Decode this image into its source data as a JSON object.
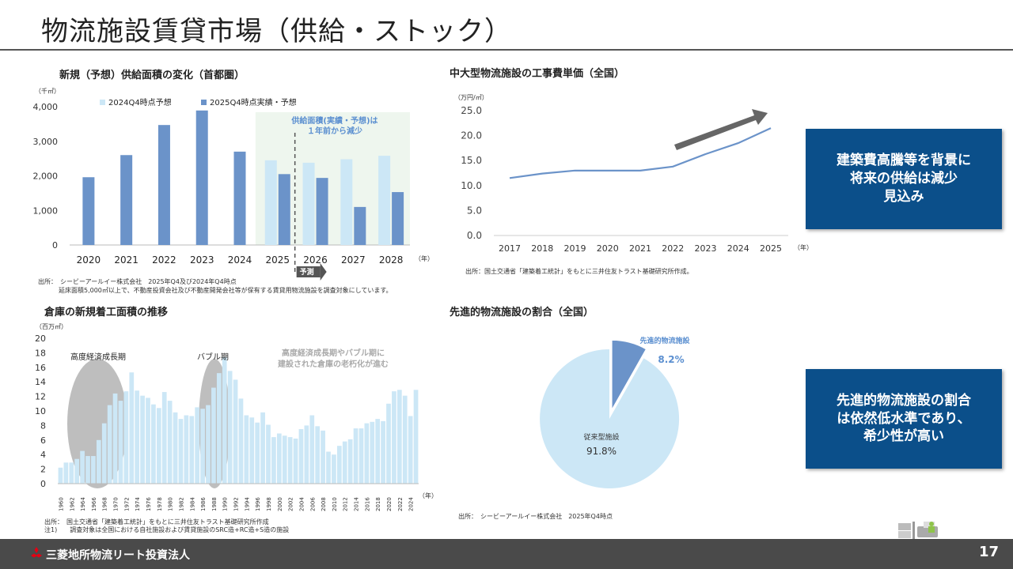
{
  "page": {
    "title": "物流施設賃貸市場（供給・ストック）",
    "page_number": "17",
    "brand": "三菱地所物流リート投資法人"
  },
  "supply_chart": {
    "title": "新規（予想）供給面積の変化（首都圏）",
    "unit": "（千㎡）",
    "year_unit": "（年）",
    "forecast_label": "予測",
    "note_line1": "供給面積(実績・予想)は",
    "note_line2": "１年前から減少",
    "source1": "出所：　シービーアールイー株式会社　2025年Q4及び2024年Q4時点",
    "source2": "延床面積5,000㎡以上で、不動産投資会社及び不動産開発会社等が保有する賃貸用物流施設を調査対象にしています。"
  },
  "cost_chart": {
    "title": "中大型物流施設の工事費単価（全国）",
    "unit": "（万円/㎡）",
    "year_unit": "（年）",
    "source": "出所：国土交通省「建築着工統計」をもとに三井住友トラスト基礎研究所作成。"
  },
  "starts_chart": {
    "title": "倉庫の新規着工面積の推移",
    "unit": "（百万㎡）",
    "year_unit": "（年）",
    "label_boom": "高度経済成長期",
    "label_bubble": "バブル期",
    "note_line1": "高度経済成長期やバブル期に",
    "note_line2": "建設された倉庫の老朽化が進む",
    "source1": "出所：　国土交通省「建築着工統計」をもとに三井住友トラスト基礎研究所作成",
    "source2": "注1)　　調査対象は全国における自社施設および賃貸施設のSRC造+RC造+S造の施設"
  },
  "share_chart": {
    "title": "先進的物流施設の割合（全国）",
    "advanced_label": "先進的物流施設",
    "advanced_value": "8.2%",
    "conventional_label": "従来型施設",
    "conventional_value": "91.8%",
    "source": "出所：　シービーアールイー株式会社　2025年Q4時点"
  },
  "callouts": {
    "cost": [
      "建築費高騰等を背景に",
      "将来の供給は減少",
      "見込み"
    ],
    "share": [
      "先進的物流施設の割合",
      "は依然低水準であり、",
      "希少性が高い"
    ]
  },
  "colors": {
    "dark_bar": "#6b93c9",
    "light_bar": "#cce7f6",
    "line": "#6b93c9",
    "callout_bg": "#0b4f8a",
    "footer_bg": "#4a4a4a",
    "forecast_bg": "#eef6ee",
    "pie_advanced": "#6b93c9",
    "pie_conventional": "#cce7f6"
  },
  "chart_data": [
    {
      "type": "bar",
      "title": "新規（予想）供給面積の変化（首都圏）",
      "categories": [
        "2020",
        "2021",
        "2022",
        "2023",
        "2024",
        "2025",
        "2026",
        "2027",
        "2028"
      ],
      "series": [
        {
          "name": "2024Q4時点予想",
          "values": [
            null,
            null,
            null,
            null,
            null,
            2450,
            2380,
            2480,
            2580
          ]
        },
        {
          "name": "2025Q4時点実績・予想",
          "values": [
            1960,
            2600,
            3470,
            3890,
            2700,
            2050,
            1940,
            1100,
            1530
          ]
        }
      ],
      "xlabel": "（年）",
      "ylabel": "（千㎡）",
      "ylim": [
        0,
        4000
      ],
      "yticks": [
        "0",
        "1,000",
        "2,000",
        "3,000",
        "4,000"
      ],
      "ytick_values": [
        0,
        1000,
        2000,
        3000,
        4000
      ],
      "legend": "top-left"
    },
    {
      "type": "line",
      "title": "中大型物流施設の工事費単価（全国）",
      "categories": [
        "2017",
        "2018",
        "2019",
        "2020",
        "2021",
        "2022",
        "2023",
        "2024",
        "2025"
      ],
      "values": [
        11.5,
        12.4,
        13.0,
        13.0,
        13.0,
        13.8,
        16.3,
        18.5,
        21.5
      ],
      "xlabel": "（年）",
      "ylabel": "（万円/㎡）",
      "ylim": [
        0,
        25
      ],
      "yticks": [
        "0.0",
        "5.0",
        "10.0",
        "15.0",
        "20.0",
        "25.0"
      ],
      "ytick_values": [
        0,
        5,
        10,
        15,
        20,
        25
      ]
    },
    {
      "type": "bar",
      "title": "倉庫の新規着工面積の推移",
      "categories": [
        "1960",
        "1961",
        "1962",
        "1963",
        "1964",
        "1965",
        "1966",
        "1967",
        "1968",
        "1969",
        "1970",
        "1971",
        "1972",
        "1973",
        "1974",
        "1975",
        "1976",
        "1977",
        "1978",
        "1979",
        "1980",
        "1981",
        "1982",
        "1983",
        "1984",
        "1985",
        "1986",
        "1987",
        "1988",
        "1989",
        "1990",
        "1991",
        "1992",
        "1993",
        "1994",
        "1995",
        "1996",
        "1997",
        "1998",
        "1999",
        "2000",
        "2001",
        "2002",
        "2003",
        "2004",
        "2005",
        "2006",
        "2007",
        "2008",
        "2009",
        "2010",
        "2011",
        "2012",
        "2013",
        "2014",
        "2015",
        "2016",
        "2017",
        "2018",
        "2019",
        "2020",
        "2021",
        "2022",
        "2023",
        "2024",
        "2025"
      ],
      "xtick_labels": [
        "1960",
        "1962",
        "1964",
        "1966",
        "1968",
        "1970",
        "1972",
        "1974",
        "1976",
        "1978",
        "1980",
        "1982",
        "1984",
        "1986",
        "1988",
        "1990",
        "1992",
        "1994",
        "1996",
        "1998",
        "2000",
        "2002",
        "2004",
        "2006",
        "2008",
        "2010",
        "2012",
        "2014",
        "2016",
        "2018",
        "2020",
        "2022",
        "2024"
      ],
      "values": [
        2.2,
        2.9,
        2.9,
        3.4,
        4.5,
        3.8,
        3.8,
        6.0,
        8.3,
        10.8,
        12.4,
        11.4,
        12.7,
        15.3,
        12.8,
        12.1,
        11.8,
        10.9,
        10.4,
        12.6,
        11.4,
        9.8,
        8.9,
        9.4,
        9.3,
        10.5,
        10.3,
        10.8,
        13.2,
        15.2,
        17.4,
        15.5,
        14.3,
        11.7,
        9.4,
        9.1,
        8.4,
        9.8,
        8.1,
        6.4,
        6.9,
        6.6,
        6.4,
        6.2,
        7.5,
        8.0,
        9.4,
        7.9,
        7.3,
        4.4,
        4.0,
        5.2,
        5.8,
        6.1,
        7.6,
        7.6,
        8.3,
        8.5,
        8.9,
        8.6,
        11.0,
        12.7,
        12.9,
        12.1,
        9.3,
        12.9
      ],
      "xlabel": "（年）",
      "ylabel": "（百万㎡）",
      "ylim": [
        0,
        20
      ],
      "yticks": [
        "0",
        "2",
        "4",
        "6",
        "8",
        "10",
        "12",
        "14",
        "16",
        "18",
        "20"
      ],
      "ytick_values": [
        0,
        2,
        4,
        6,
        8,
        10,
        12,
        14,
        16,
        18,
        20
      ]
    },
    {
      "type": "pie",
      "title": "先進的物流施設の割合（全国）",
      "labels": [
        "先進的物流施設",
        "従来型施設"
      ],
      "values": [
        8.2,
        91.8
      ]
    }
  ]
}
